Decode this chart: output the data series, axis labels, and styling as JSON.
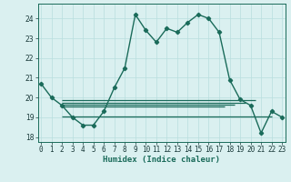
{
  "xlabel": "Humidex (Indice chaleur)",
  "main_line": {
    "x": [
      0,
      1,
      2,
      3,
      4,
      5,
      6,
      7,
      8,
      9,
      10,
      11,
      12,
      13,
      14,
      15,
      16,
      17,
      18,
      19,
      20,
      21,
      22,
      23
    ],
    "y": [
      20.7,
      20.0,
      19.6,
      19.0,
      18.6,
      18.6,
      19.3,
      20.5,
      21.5,
      24.2,
      23.4,
      22.8,
      23.5,
      23.3,
      23.8,
      24.2,
      24.0,
      23.3,
      20.9,
      19.9,
      19.6,
      18.2,
      19.3,
      19.0
    ],
    "color": "#1a6b5a",
    "marker": "D",
    "markersize": 2.2,
    "linewidth": 1.0
  },
  "hlines": [
    {
      "y": 19.85,
      "xmin": 2,
      "xmax": 20.5,
      "color": "#1a6b5a",
      "linewidth": 0.9
    },
    {
      "y": 19.75,
      "xmin": 2,
      "xmax": 19.5,
      "color": "#1a6b5a",
      "linewidth": 0.9
    },
    {
      "y": 19.65,
      "xmin": 2,
      "xmax": 18.5,
      "color": "#1a6b5a",
      "linewidth": 0.9
    },
    {
      "y": 19.55,
      "xmin": 2,
      "xmax": 17.5,
      "color": "#1a6b5a",
      "linewidth": 0.9
    },
    {
      "y": 19.05,
      "xmin": 2,
      "xmax": 22.0,
      "color": "#1a6b5a",
      "linewidth": 0.9
    }
  ],
  "xlim": [
    -0.3,
    23.3
  ],
  "ylim": [
    17.75,
    24.75
  ],
  "yticks": [
    18,
    19,
    20,
    21,
    22,
    23,
    24
  ],
  "xticks": [
    0,
    1,
    2,
    3,
    4,
    5,
    6,
    7,
    8,
    9,
    10,
    11,
    12,
    13,
    14,
    15,
    16,
    17,
    18,
    19,
    20,
    21,
    22,
    23
  ],
  "bg_color": "#daf0f0",
  "grid_color": "#b8dede",
  "axis_color": "#1a6b5a",
  "tick_color": "#1a3a3a",
  "label_fontsize": 6.5,
  "tick_fontsize": 5.5
}
